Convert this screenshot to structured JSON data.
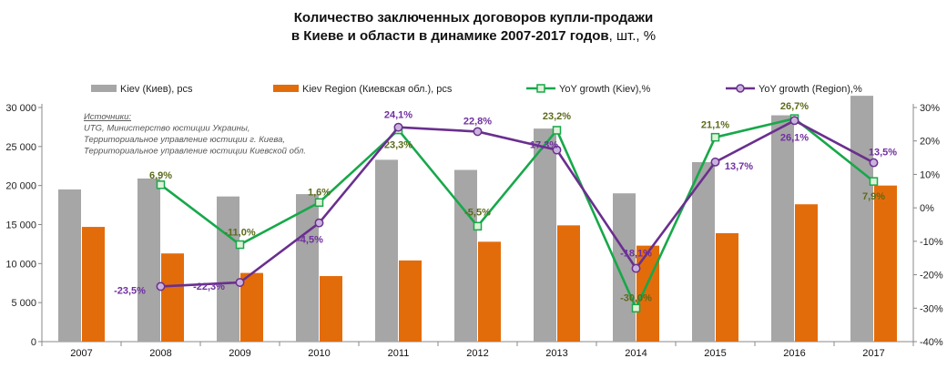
{
  "title": {
    "line1": "Количество заключенных договоров купли-продажи",
    "line2_bold": "в Киеве и области в динамике 2007-2017 годов",
    "line2_light": ", шт., %"
  },
  "source": {
    "lines": [
      "Источники:",
      "UTG, Министерство юстиции Украины,",
      "Территориальное управление юстиции г. Киева,",
      "Территориальное управление юстиции Киевской обл."
    ]
  },
  "chart_data": {
    "type": "bar",
    "categories": [
      "2007",
      "2008",
      "2009",
      "2010",
      "2011",
      "2012",
      "2013",
      "2014",
      "2015",
      "2016",
      "2017"
    ],
    "left_axis": {
      "min": 0,
      "max": 30000,
      "step": 5000,
      "ticks": [
        "0",
        "5 000",
        "10 000",
        "15 000",
        "20 000",
        "25 000",
        "30 000"
      ]
    },
    "right_axis": {
      "min": -40,
      "max": 30,
      "step": 10,
      "ticks": [
        "-40%",
        "-30%",
        "-20%",
        "-10%",
        "0%",
        "10%",
        "20%",
        "30%"
      ]
    },
    "bar_series": [
      {
        "name": "Kiev (Киев), pcs",
        "color": "#a6a6a6",
        "values": [
          19500,
          20900,
          18600,
          18900,
          23300,
          22000,
          27300,
          19000,
          23000,
          29000,
          31500
        ]
      },
      {
        "name": "Kiev Region (Киевская обл.), pcs",
        "color": "#e36c0a",
        "values": [
          14700,
          11300,
          8800,
          8400,
          10400,
          12800,
          14900,
          12300,
          13900,
          17600,
          20000
        ]
      }
    ],
    "line_series": [
      {
        "name": "YoY growth (Kiev),%",
        "color": "#17a84a",
        "label_color": "#5b6b1a",
        "marker": "square",
        "values": [
          null,
          6.9,
          -11.0,
          1.6,
          23.3,
          -5.5,
          23.2,
          -30.0,
          21.1,
          26.7,
          7.9
        ],
        "labels": [
          "",
          "6,9%",
          "-11,0%",
          "1,6%",
          "23,3%",
          "-5,5%",
          "23,2%",
          "-30,0%",
          "21,1%",
          "26,7%",
          "7,9%"
        ]
      },
      {
        "name": "YoY growth (Region),%",
        "color": "#6a2f8e",
        "label_color": "#7030a0",
        "marker": "circle",
        "values": [
          null,
          -23.5,
          -22.3,
          -4.5,
          24.1,
          22.8,
          17.3,
          -18.1,
          13.7,
          26.1,
          13.5
        ],
        "labels": [
          "",
          "-23,5%",
          "-22,3%",
          "-4,5%",
          "24,1%",
          "22,8%",
          "17,3%",
          "-18,1%",
          "13,7%",
          "26,1%",
          "13,5%"
        ]
      }
    ],
    "legend_position": "top",
    "grid": false
  }
}
